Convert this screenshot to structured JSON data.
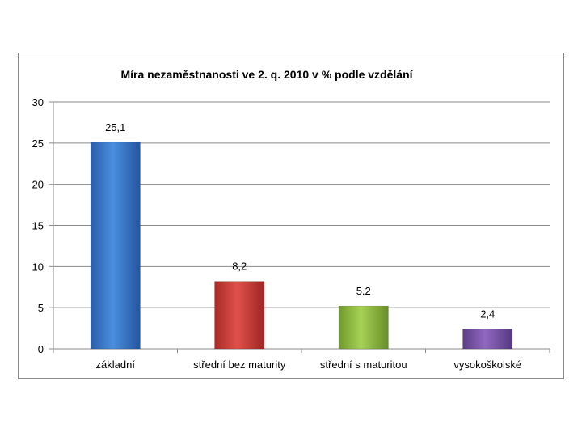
{
  "chart_data": {
    "type": "bar",
    "title": "Míra nezaměstnanosti ve 2. q. 2010 v % podle vzdělání",
    "categories": [
      "základní",
      "střední bez maturity",
      "střední s maturitou",
      "vysokoškolské"
    ],
    "values": [
      25.1,
      8.2,
      5.2,
      2.4
    ],
    "data_labels": [
      "25,1",
      "8,2",
      "5.2",
      "2,4"
    ],
    "colors": [
      "#3a78cc",
      "#cf3a36",
      "#8fc040",
      "#7852a6"
    ],
    "ylim": [
      0,
      30
    ],
    "yticks": [
      0,
      5,
      10,
      15,
      20,
      25,
      30
    ],
    "xlabel": "",
    "ylabel": "",
    "grid": true,
    "legend": "none"
  }
}
